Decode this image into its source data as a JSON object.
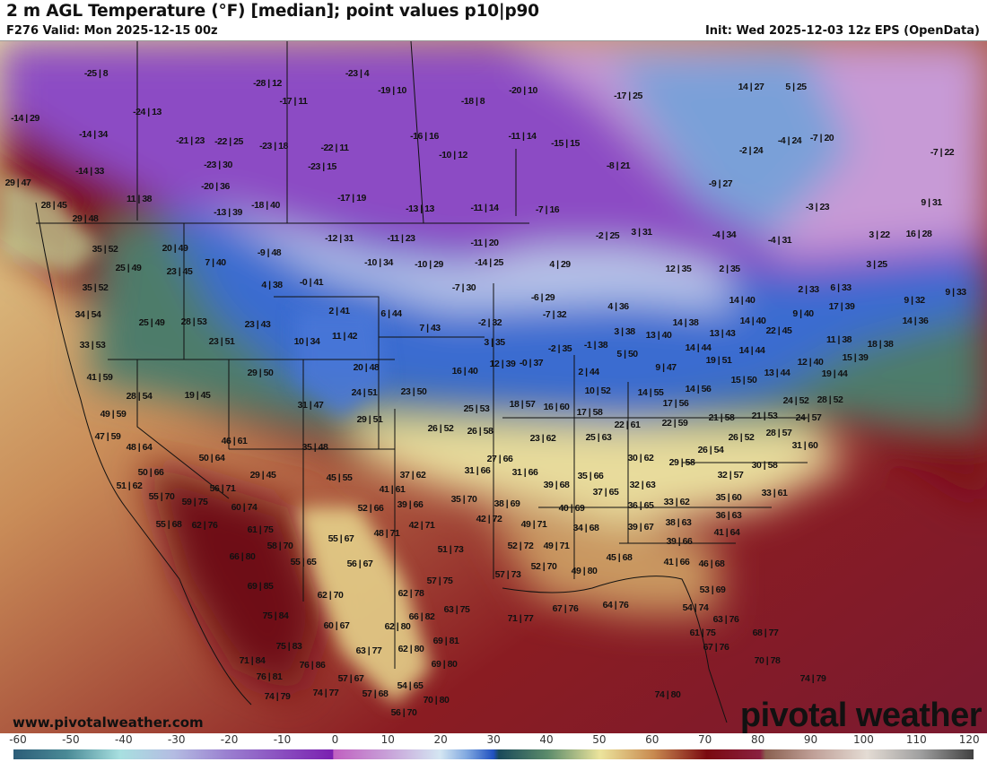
{
  "header": {
    "title": "2 m AGL Temperature (°F) [median]; point values p10|p90",
    "valid": "F276 Valid: Mon 2025-12-15 00z",
    "init": "Init: Wed 2025-12-03 12z EPS (OpenData)"
  },
  "watermark": {
    "url": "www.pivotalweather.com",
    "logo": "pivotal weather"
  },
  "colorbar": {
    "unit": "°F",
    "ticks": [
      "-60",
      "-50",
      "-40",
      "-30",
      "-20",
      "-10",
      "0",
      "10",
      "20",
      "30",
      "40",
      "50",
      "60",
      "70",
      "80",
      "90",
      "100",
      "110",
      "120"
    ],
    "range": [
      -60,
      120
    ]
  },
  "labels": [
    "-25 | 8",
    "-28 | 12",
    "-23 | 4",
    "-19 | 10",
    "-20 | 10",
    "-17 | 25",
    "14 | 27",
    "5 | 25",
    "-14 | 29",
    "-24 | 13",
    "-17 | 11",
    "-18 | 8",
    "-14 | 34",
    "-21 | 23",
    "-22 | 25",
    "-23 | 18",
    "-22 | 11",
    "-16 | 16",
    "-11 | 14",
    "-15 | 15",
    "-4 | 24",
    "-7 | 20",
    "-10 | 12",
    "-2 | 24",
    "-7 | 22",
    "-14 | 33",
    "-23 | 30",
    "-23 | 15",
    "-8 | 21",
    "-20 | 36",
    "-9 | 27",
    "29 | 47",
    "11 | 38",
    "-18 | 40",
    "-13 | 39",
    "-17 | 19",
    "-13 | 13",
    "-11 | 14",
    "-7 | 16",
    "-3 | 23",
    "9 | 31",
    "28 | 45",
    "29 | 48",
    "-12 | 31",
    "-11 | 23",
    "-2 | 25",
    "3 | 31",
    "-4 | 34",
    "-4 | 31",
    "3 | 22",
    "16 | 28",
    "35 | 52",
    "20 | 49",
    "-9 | 48",
    "-11 | 20",
    "7 | 40",
    "-10 | 34",
    "-10 | 29",
    "-14 | 25",
    "4 | 29",
    "12 | 35",
    "2 | 35",
    "3 | 25",
    "25 | 49",
    "23 | 45",
    "4 | 38",
    "-0 | 41",
    "35 | 52",
    "-7 | 30",
    "-6 | 29",
    "2 | 33",
    "6 | 33",
    "9 | 33",
    "9 | 32",
    "4 | 36",
    "14 | 40",
    "17 | 39",
    "2 | 41",
    "6 | 44",
    "34 | 54",
    "25 | 49",
    "28 | 53",
    "23 | 43",
    "-7 | 32",
    "-2 | 32",
    "14 | 38",
    "14 | 40",
    "9 | 40",
    "14 | 36",
    "7 | 43",
    "11 | 42",
    "13 | 40",
    "3 | 38",
    "13 | 43",
    "22 | 45",
    "33 | 53",
    "23 | 51",
    "10 | 34",
    "3 | 35",
    "-1 | 38",
    "-2 | 35",
    "-0 | 37",
    "14 | 44",
    "14 | 44",
    "11 | 38",
    "18 | 38",
    "5 | 50",
    "12 | 39",
    "19 | 51",
    "12 | 40",
    "15 | 39",
    "20 | 48",
    "16 | 40",
    "9 | 47",
    "41 | 59",
    "29 | 50",
    "2 | 44",
    "19 | 44",
    "13 | 44",
    "15 | 50",
    "28 | 54",
    "19 | 45",
    "24 | 51",
    "23 | 50",
    "10 | 52",
    "14 | 55",
    "14 | 56",
    "24 | 52",
    "28 | 52",
    "31 | 47",
    "25 | 53",
    "18 | 57",
    "16 | 60",
    "17 | 56",
    "49 | 59",
    "29 | 51",
    "17 | 58",
    "21 | 58",
    "21 | 53",
    "24 | 57",
    "22 | 59",
    "22 | 61",
    "26 | 52",
    "26 | 58",
    "47 | 59",
    "25 | 63",
    "23 | 62",
    "28 | 57",
    "26 | 52",
    "48 | 64",
    "46 | 61",
    "35 | 48",
    "26 | 54",
    "31 | 60",
    "27 | 66",
    "30 | 62",
    "29 | 58",
    "30 | 58",
    "50 | 64",
    "50 | 66",
    "29 | 45",
    "45 | 55",
    "37 | 62",
    "31 | 66",
    "31 | 66",
    "35 | 66",
    "32 | 57",
    "51 | 62",
    "56 | 71",
    "41 | 61",
    "39 | 68",
    "37 | 65",
    "32 | 63",
    "35 | 60",
    "33 | 61",
    "55 | 70",
    "59 | 75",
    "52 | 66",
    "39 | 66",
    "35 | 70",
    "38 | 69",
    "40 | 69",
    "36 | 65",
    "33 | 62",
    "36 | 63",
    "60 | 74",
    "42 | 72",
    "42 | 71",
    "49 | 71",
    "34 | 68",
    "39 | 67",
    "38 | 63",
    "41 | 64",
    "55 | 68",
    "62 | 76",
    "61 | 75",
    "48 | 71",
    "58 | 70",
    "55 | 67",
    "51 | 73",
    "52 | 72",
    "49 | 71",
    "39 | 66",
    "66 | 80",
    "55 | 65",
    "56 | 67",
    "45 | 68",
    "41 | 66",
    "46 | 68",
    "57 | 75",
    "57 | 73",
    "52 | 70",
    "49 | 80",
    "69 | 85",
    "62 | 78",
    "53 | 69",
    "62 | 70",
    "75 | 84",
    "66 | 82",
    "63 | 75",
    "71 | 77",
    "67 | 76",
    "64 | 76",
    "54 | 74",
    "63 | 76",
    "60 | 67",
    "62 | 80",
    "61 | 75",
    "68 | 77",
    "75 | 83",
    "69 | 81",
    "62 | 80",
    "63 | 77",
    "67 | 76",
    "70 | 78",
    "71 | 84",
    "76 | 86",
    "69 | 80",
    "74 | 79",
    "76 | 81",
    "57 | 67",
    "54 | 65",
    "74 | 77",
    "57 | 68",
    "74 | 79",
    "70 | 80",
    "74 | 80",
    "56 | 70"
  ]
}
